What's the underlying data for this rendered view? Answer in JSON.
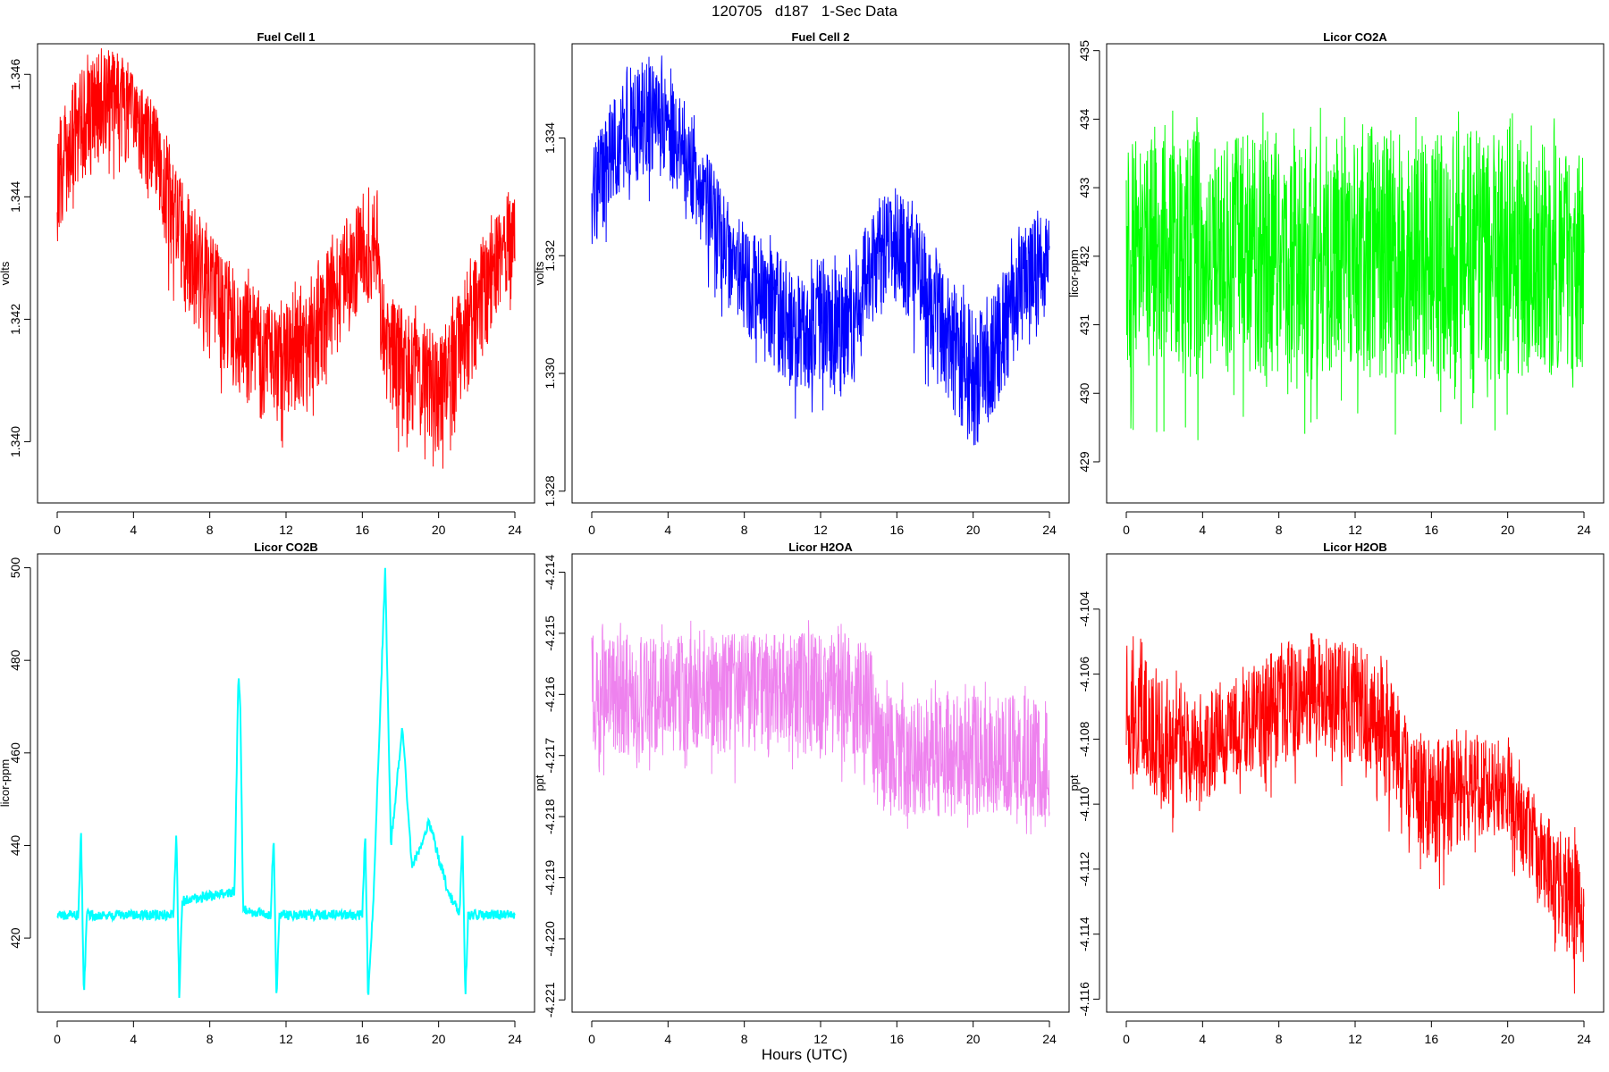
{
  "page_title": "120705   d187   1-Sec Data",
  "shared_xlabel": "Hours (UTC)",
  "chart_data": [
    {
      "type": "line",
      "title": "Fuel Cell 1",
      "ylabel": "volts",
      "color": "#ff0000",
      "xlim": [
        0,
        24
      ],
      "ylim": [
        1.339,
        1.3465
      ],
      "x_ticks": [
        0,
        4,
        8,
        12,
        16,
        20,
        24
      ],
      "y_ticks": [
        1.34,
        1.342,
        1.344,
        1.346
      ],
      "y_tick_labels": [
        "1.340",
        "1.342",
        "1.344",
        "1.346"
      ],
      "x": [
        0,
        1,
        2,
        3,
        3.5,
        4,
        5,
        6,
        7,
        8,
        9,
        10,
        11,
        12,
        13,
        14,
        15,
        16,
        16.8,
        17.1,
        18,
        19,
        20,
        21,
        22,
        23,
        24
      ],
      "center": [
        1.3444,
        1.3452,
        1.3456,
        1.3459,
        1.3458,
        1.3454,
        1.3449,
        1.344,
        1.3432,
        1.3426,
        1.3422,
        1.3418,
        1.3414,
        1.3416,
        1.3418,
        1.3422,
        1.3428,
        1.3434,
        1.3433,
        1.3418,
        1.3414,
        1.3412,
        1.341,
        1.3416,
        1.3424,
        1.343,
        1.3434
      ],
      "band_min": [
        1.3432,
        1.3442,
        1.3444,
        1.3447,
        1.3446,
        1.3442,
        1.3437,
        1.3428,
        1.342,
        1.3414,
        1.341,
        1.3406,
        1.3402,
        1.3404,
        1.3406,
        1.341,
        1.3416,
        1.3422,
        1.3421,
        1.3406,
        1.3402,
        1.34,
        1.3398,
        1.3404,
        1.3412,
        1.3418,
        1.3422
      ],
      "band_max": [
        1.3452,
        1.346,
        1.3463,
        1.3464,
        1.3463,
        1.346,
        1.3456,
        1.3448,
        1.344,
        1.3434,
        1.343,
        1.3426,
        1.3422,
        1.3424,
        1.3426,
        1.343,
        1.3436,
        1.3441,
        1.344,
        1.3426,
        1.3422,
        1.342,
        1.3418,
        1.3424,
        1.3432,
        1.3438,
        1.344
      ]
    },
    {
      "type": "line",
      "title": "Fuel Cell 2",
      "ylabel": "volts",
      "color": "#0000ff",
      "xlim": [
        0,
        24
      ],
      "ylim": [
        1.3278,
        1.3356
      ],
      "x_ticks": [
        0,
        4,
        8,
        12,
        16,
        20,
        24
      ],
      "y_ticks": [
        1.328,
        1.33,
        1.332,
        1.334
      ],
      "y_tick_labels": [
        "1.328",
        "1.330",
        "1.332",
        "1.334"
      ],
      "x": [
        0,
        1,
        2,
        3,
        4,
        5,
        6,
        7,
        8,
        9,
        10,
        11,
        12,
        13,
        14,
        15,
        16,
        17,
        18,
        19,
        20,
        21,
        22,
        23,
        24
      ],
      "center": [
        1.333,
        1.3338,
        1.3342,
        1.3344,
        1.3342,
        1.3338,
        1.333,
        1.3322,
        1.3317,
        1.3314,
        1.331,
        1.3306,
        1.331,
        1.3306,
        1.3312,
        1.332,
        1.3323,
        1.3318,
        1.331,
        1.3304,
        1.3298,
        1.3302,
        1.3312,
        1.3318,
        1.332
      ],
      "band_min": [
        1.332,
        1.3328,
        1.3332,
        1.3334,
        1.3332,
        1.3328,
        1.332,
        1.3312,
        1.3307,
        1.3303,
        1.3299,
        1.3295,
        1.3299,
        1.3295,
        1.3301,
        1.3309,
        1.3312,
        1.3307,
        1.3299,
        1.3293,
        1.3287,
        1.3291,
        1.3301,
        1.3307,
        1.331
      ],
      "band_max": [
        1.3338,
        1.3346,
        1.3351,
        1.3354,
        1.3351,
        1.3346,
        1.3338,
        1.333,
        1.3325,
        1.3323,
        1.332,
        1.3317,
        1.332,
        1.3317,
        1.3322,
        1.333,
        1.3332,
        1.3328,
        1.332,
        1.3315,
        1.331,
        1.3313,
        1.3321,
        1.3326,
        1.3328
      ]
    },
    {
      "type": "line",
      "title": "Licor CO2A",
      "ylabel": "licor-ppm",
      "color": "#00ff00",
      "xlim": [
        0,
        24
      ],
      "ylim": [
        428.4,
        435.1
      ],
      "x_ticks": [
        0,
        4,
        8,
        12,
        16,
        20,
        24
      ],
      "y_ticks": [
        429,
        430,
        431,
        432,
        433,
        434,
        435
      ],
      "y_tick_labels": [
        "429",
        "430",
        "431",
        "432",
        "433",
        "434",
        "435"
      ],
      "x": [
        0,
        4,
        8,
        12,
        16,
        20,
        24
      ],
      "center": [
        432.0,
        432.0,
        432.0,
        432.0,
        432.0,
        432.0,
        432.0
      ],
      "band_min": [
        430.3,
        430.2,
        430.2,
        430.2,
        430.2,
        430.2,
        430.3
      ],
      "band_max": [
        433.6,
        433.8,
        433.7,
        433.8,
        433.8,
        433.9,
        433.5
      ]
    },
    {
      "type": "line",
      "title": "Licor CO2B",
      "ylabel": "licor-ppm",
      "color": "#00ffff",
      "xlim": [
        0,
        24
      ],
      "ylim": [
        404,
        503
      ],
      "x_ticks": [
        0,
        4,
        8,
        12,
        16,
        20,
        24
      ],
      "y_ticks": [
        420,
        440,
        460,
        480,
        500
      ],
      "y_tick_labels": [
        "420",
        "440",
        "460",
        "480",
        "500"
      ],
      "x": [
        0,
        1.1,
        1.25,
        1.4,
        1.55,
        1.7,
        6.1,
        6.25,
        6.4,
        6.55,
        9.3,
        9.5,
        9.6,
        9.75,
        11.2,
        11.35,
        11.5,
        11.65,
        16.0,
        16.15,
        16.3,
        16.6,
        17.2,
        17.5,
        18.1,
        18.6,
        19.5,
        20.5,
        21.1,
        21.25,
        21.4,
        21.55,
        22,
        24
      ],
      "values": [
        425,
        425,
        443,
        407,
        425,
        425,
        425,
        443,
        407,
        428,
        430,
        477,
        470,
        426,
        425,
        443,
        407,
        425,
        425,
        443,
        407,
        430,
        500,
        440,
        466,
        435,
        445,
        430,
        425,
        443,
        407,
        425,
        425,
        425
      ]
    },
    {
      "type": "line",
      "title": "Licor H2OA",
      "ylabel": "ppt",
      "color": "#ee82ee",
      "xlim": [
        0,
        24
      ],
      "ylim": [
        -4.2212,
        -4.2137
      ],
      "x_ticks": [
        0,
        4,
        8,
        12,
        16,
        20,
        24
      ],
      "y_ticks": [
        -4.221,
        -4.22,
        -4.219,
        -4.218,
        -4.217,
        -4.216,
        -4.215,
        -4.214
      ],
      "y_tick_labels": [
        "-4.221",
        "-4.220",
        "-4.219",
        "-4.218",
        "-4.217",
        "-4.216",
        "-4.215",
        "-4.214"
      ],
      "x": [
        0,
        4,
        8,
        12,
        14.5,
        15,
        20,
        22,
        24
      ],
      "band_min": [
        -4.217,
        -4.217,
        -4.217,
        -4.217,
        -4.217,
        -4.218,
        -4.218,
        -4.218,
        -4.218
      ],
      "band_max": [
        -4.215,
        -4.215,
        -4.215,
        -4.215,
        -4.215,
        -4.216,
        -4.216,
        -4.216,
        -4.216
      ],
      "center": [
        -4.216,
        -4.216,
        -4.2158,
        -4.2158,
        -4.216,
        -4.217,
        -4.217,
        -4.2172,
        -4.2175
      ]
    },
    {
      "type": "line",
      "title": "Licor H2OB",
      "ylabel": "ppt",
      "color": "#ff0000",
      "xlim": [
        0,
        24
      ],
      "ylim": [
        -4.1164,
        -4.1023
      ],
      "x_ticks": [
        0,
        4,
        8,
        12,
        16,
        20,
        24
      ],
      "y_ticks": [
        -4.116,
        -4.114,
        -4.112,
        -4.11,
        -4.108,
        -4.106,
        -4.104
      ],
      "y_tick_labels": [
        "-4.116",
        "-4.114",
        "-4.112",
        "-4.110",
        "-4.108",
        "-4.106",
        "-4.104"
      ],
      "x": [
        0,
        2,
        4,
        6,
        8,
        10,
        12,
        14,
        15,
        16,
        18,
        20,
        21.5,
        22.5,
        23.5,
        24
      ],
      "center": [
        -4.1075,
        -4.108,
        -4.1085,
        -4.1078,
        -4.107,
        -4.1068,
        -4.107,
        -4.108,
        -4.1095,
        -4.11,
        -4.1095,
        -4.1095,
        -4.111,
        -4.112,
        -4.113,
        -4.1135
      ],
      "band_min": [
        -4.109,
        -4.11,
        -4.11,
        -4.109,
        -4.109,
        -4.108,
        -4.109,
        -4.11,
        -4.111,
        -4.112,
        -4.111,
        -4.111,
        -4.113,
        -4.114,
        -4.115,
        -4.115
      ],
      "band_max": [
        -4.105,
        -4.106,
        -4.107,
        -4.106,
        -4.105,
        -4.105,
        -4.105,
        -4.106,
        -4.108,
        -4.108,
        -4.108,
        -4.108,
        -4.11,
        -4.111,
        -4.111,
        -4.112
      ]
    }
  ]
}
